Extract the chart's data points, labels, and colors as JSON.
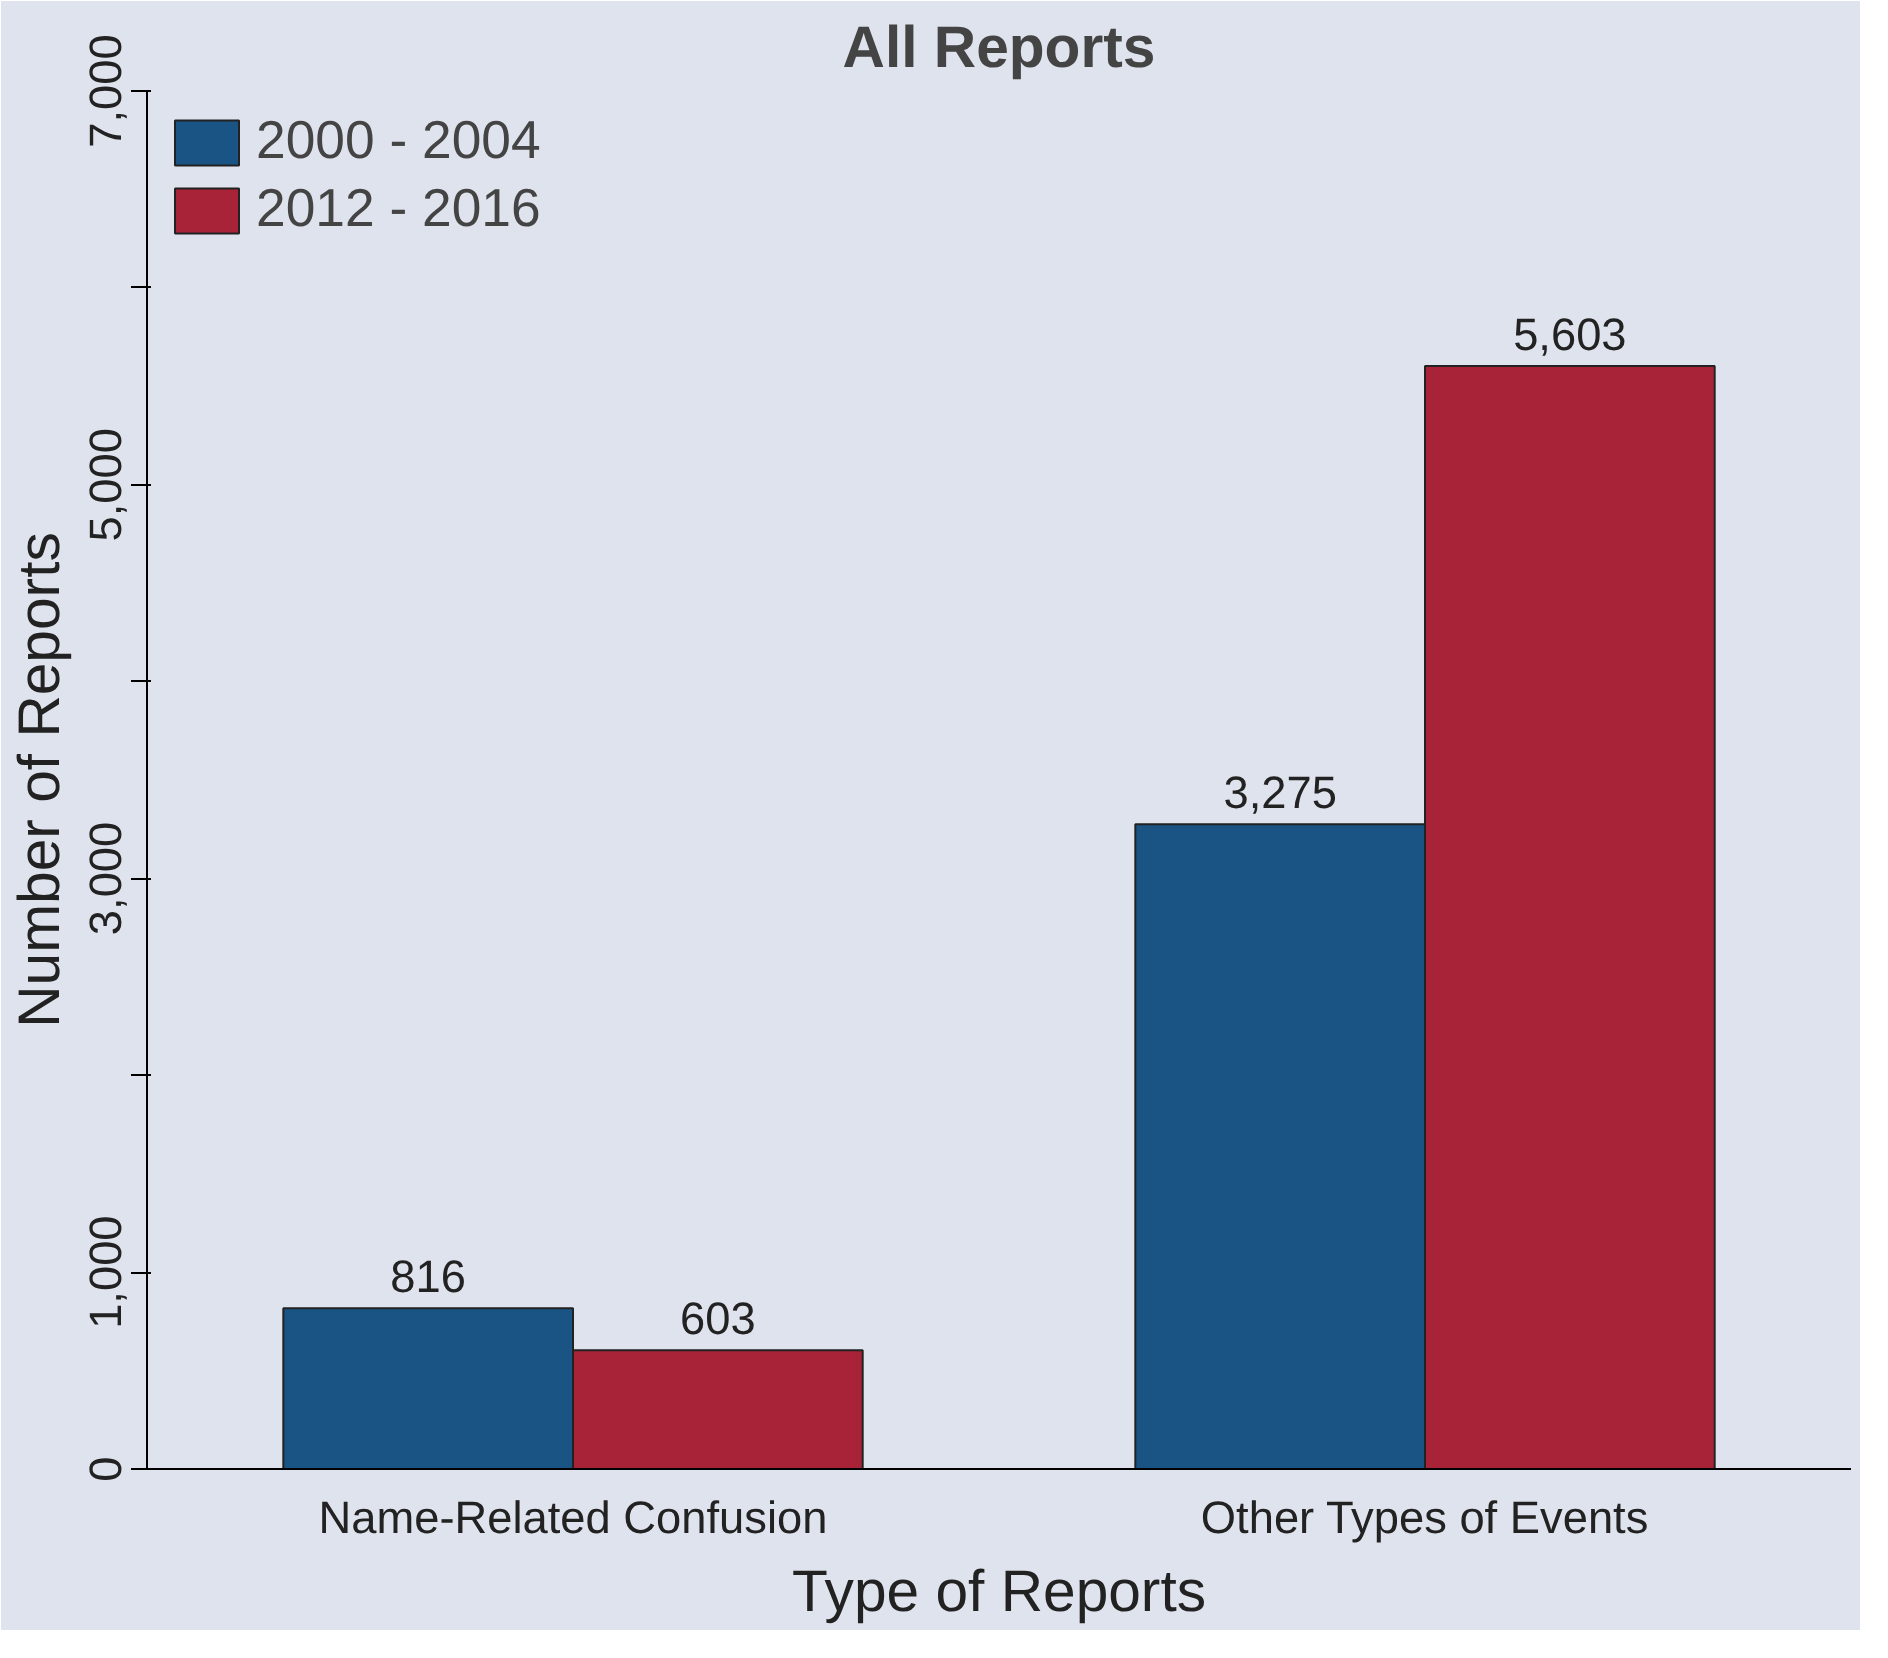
{
  "chart_data": {
    "type": "bar",
    "title": "All Reports",
    "xlabel": "Type of Reports",
    "ylabel": "Number of Reports",
    "categories": [
      "Name-Related Confusion",
      "Other Types of Events"
    ],
    "series": [
      {
        "name": "2000 - 2004",
        "color": "#1a5484",
        "values": [
          816,
          3275
        ],
        "value_labels": [
          "816",
          "3,275"
        ]
      },
      {
        "name": "2012 - 2016",
        "color": "#a82238",
        "values": [
          603,
          5603
        ],
        "value_labels": [
          "603",
          "5,603"
        ]
      }
    ],
    "ylim": [
      0,
      7000
    ],
    "yticks": [
      0,
      {
        "value": 1000,
        "label": "1,000"
      },
      {
        "value": 2000,
        "label": null
      },
      {
        "value": 3000,
        "label": "3,000"
      },
      {
        "value": 4000,
        "label": null
      },
      {
        "value": 5000,
        "label": "5,000"
      },
      {
        "value": 6000,
        "label": null
      },
      {
        "value": 7000,
        "label": "7,000"
      }
    ],
    "grid": false,
    "legend": "top left"
  }
}
